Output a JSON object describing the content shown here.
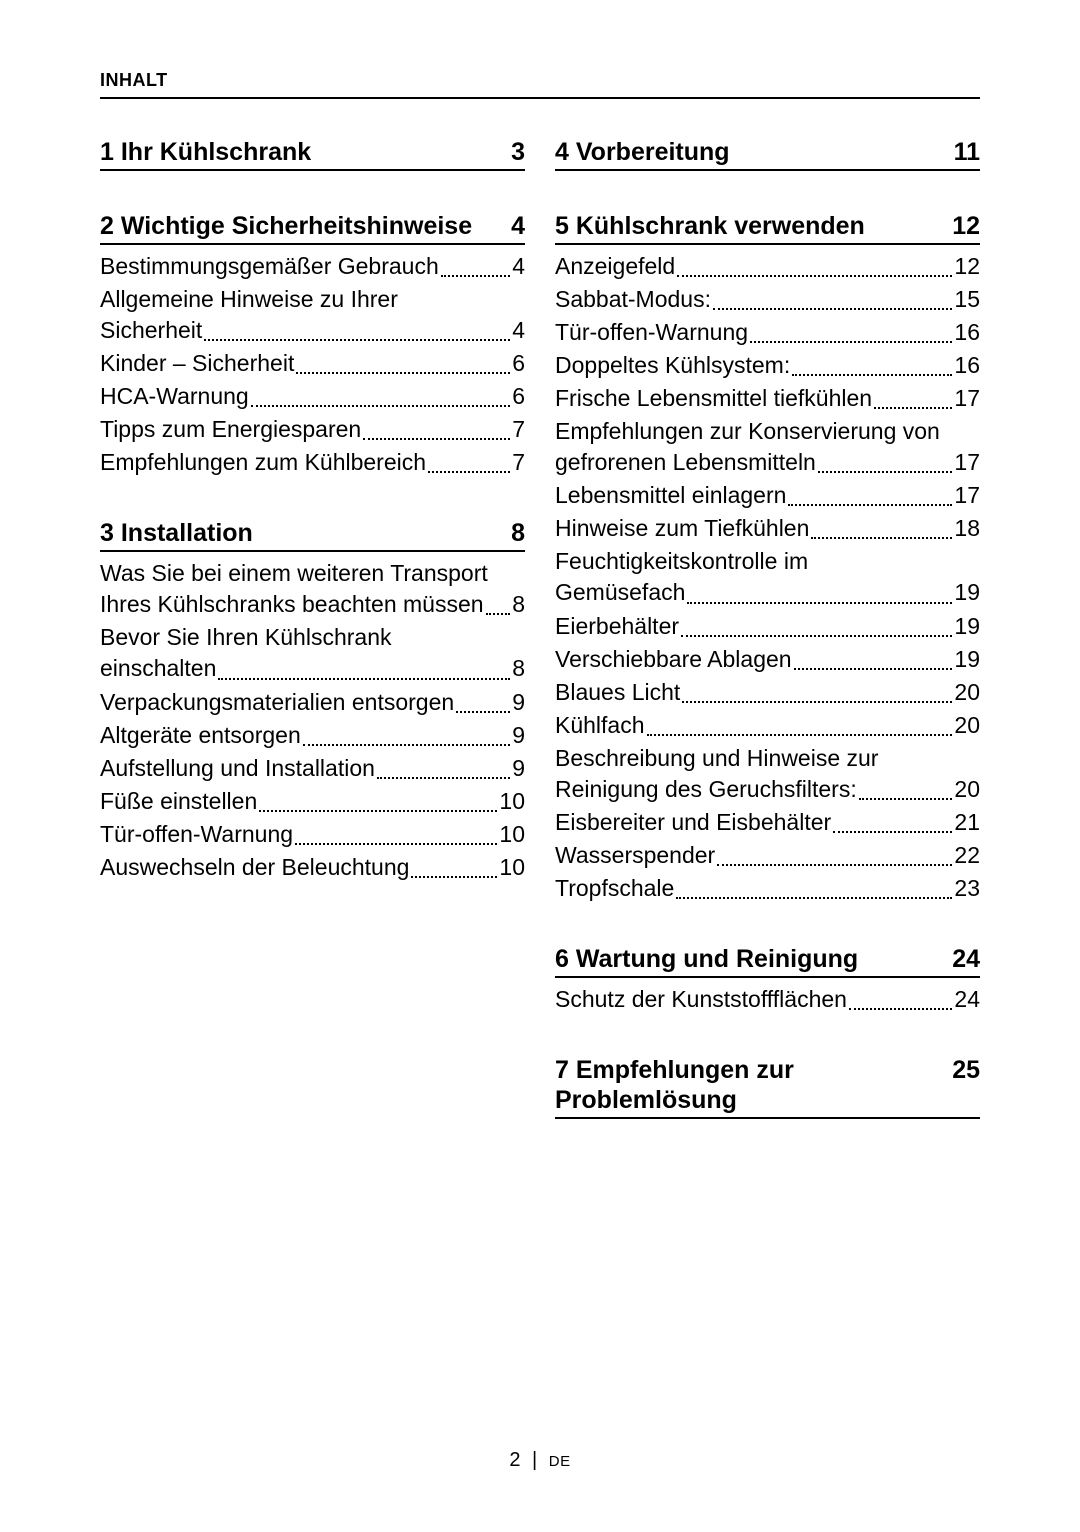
{
  "header": "INHALT",
  "footer": {
    "page": "2",
    "lang": "DE"
  },
  "sections": [
    {
      "num": "1",
      "title": "Ihr Kühlschrank",
      "page": "3",
      "column": "left",
      "entries": []
    },
    {
      "num": "2",
      "title": "Wichtige Sicherheitshinweise",
      "page": "4",
      "column": "left",
      "entries": [
        {
          "label": "Bestimmungsgemäßer Gebrauch",
          "page": "4"
        },
        {
          "pre": "Allgemeine Hinweise zu Ihrer",
          "label": "Sicherheit",
          "page": "4"
        },
        {
          "label": "Kinder – Sicherheit",
          "page": "6"
        },
        {
          "label": "HCA-Warnung",
          "page": "6"
        },
        {
          "label": "Tipps zum Energiesparen",
          "page": "7"
        },
        {
          "label": "Empfehlungen zum Kühlbereich",
          "page": "7"
        }
      ]
    },
    {
      "num": "3",
      "title": "Installation",
      "page": "8",
      "column": "left",
      "entries": [
        {
          "pre": "Was Sie bei einem weiteren Transport",
          "label": "Ihres Kühlschranks beachten müssen",
          "page": "8"
        },
        {
          "pre": "Bevor Sie Ihren Kühlschrank",
          "label": "einschalten",
          "page": "8"
        },
        {
          "label": "Verpackungsmaterialien entsorgen",
          "page": "9"
        },
        {
          "label": "Altgeräte entsorgen",
          "page": "9"
        },
        {
          "label": "Aufstellung und Installation",
          "page": "9"
        },
        {
          "label": "Füße einstellen",
          "page": "10"
        },
        {
          "label": "Tür-offen-Warnung",
          "page": "10"
        },
        {
          "label": "Auswechseln der Beleuchtung",
          "page": "10"
        }
      ]
    },
    {
      "num": "4",
      "title": "Vorbereitung",
      "page": "11",
      "column": "right",
      "entries": []
    },
    {
      "num": "5",
      "title": "Kühlschrank verwenden",
      "page": "12",
      "column": "right",
      "entries": [
        {
          "label": "Anzeigefeld",
          "page": "12"
        },
        {
          "label": "Sabbat-Modus: ",
          "page": "15"
        },
        {
          "label": "Tür-offen-Warnung",
          "page": "16"
        },
        {
          "label": "Doppeltes Kühlsystem: ",
          "page": "16"
        },
        {
          "label": "Frische Lebensmittel tiefkühlen",
          "page": "17"
        },
        {
          "pre": "Empfehlungen zur Konservierung von",
          "label": "gefrorenen Lebensmitteln",
          "page": "17"
        },
        {
          "label": "Lebensmittel einlagern",
          "page": "17"
        },
        {
          "label": "Hinweise zum Tiefkühlen",
          "page": "18"
        },
        {
          "pre": "Feuchtigkeitskontrolle im",
          "label": "Gemüsefach",
          "page": "19"
        },
        {
          "label": "Eierbehälter",
          "page": "19"
        },
        {
          "label": "Verschiebbare Ablagen",
          "page": "19"
        },
        {
          "label": "Blaues Licht",
          "page": "20"
        },
        {
          "label": "Kühlfach",
          "page": "20"
        },
        {
          "pre": "Beschreibung und Hinweise zur",
          "label": "Reinigung des Geruchsfilters: ",
          "page": "20"
        },
        {
          "label": "Eisbereiter und Eisbehälter ",
          "page": "21"
        },
        {
          "label": "Wasserspender ",
          "page": "22"
        },
        {
          "label": "Tropfschale ",
          "page": "23"
        }
      ]
    },
    {
      "num": "6",
      "title": "Wartung und Reinigung",
      "page": "24",
      "column": "right",
      "entries": [
        {
          "label": "Schutz der Kunststoffflächen ",
          "page": "24"
        }
      ]
    },
    {
      "num": "7",
      "title": "Empfehlungen zur Problemlösung",
      "page": "25",
      "column": "right",
      "entries": []
    }
  ]
}
